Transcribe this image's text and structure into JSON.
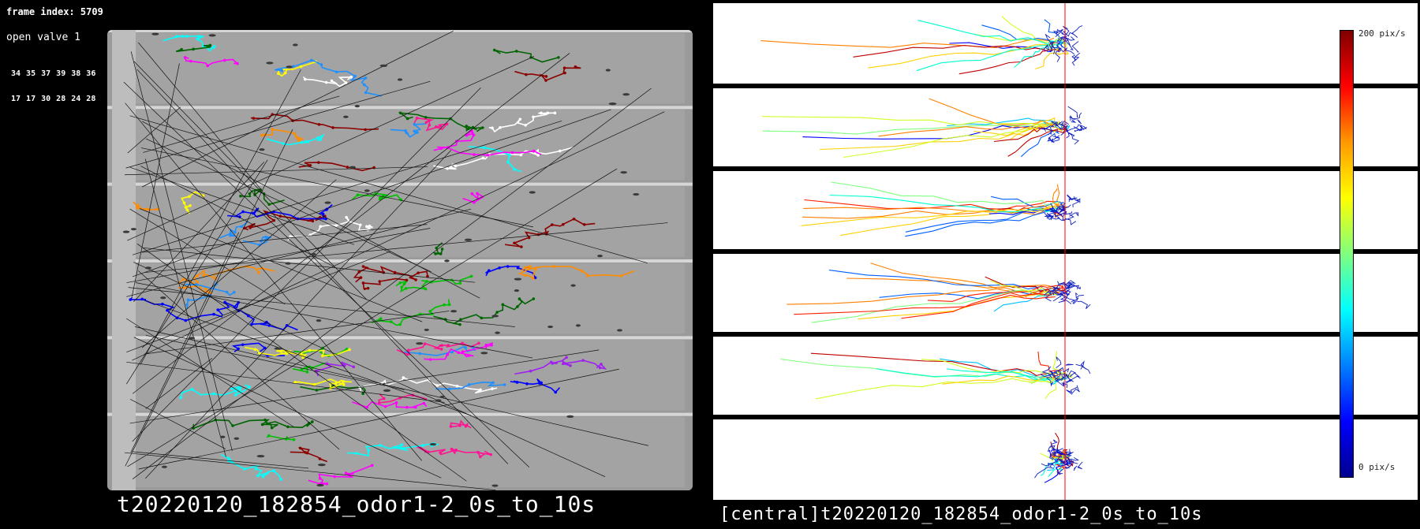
{
  "overlay": {
    "frame_label": "frame index: 5709",
    "valve_label": "open valve 1",
    "counts_row_1": "34 35 37 39 38 36",
    "counts_row_2": "17 17 30 28 24 28"
  },
  "left_view": {
    "caption": "t20220120_182854_odor1-2_0s_to_10s",
    "lanes": 6
  },
  "right_view": {
    "caption": "[central]t20220120_182854_odor1-2_0s_to_10s",
    "lanes": 6,
    "colorbar": {
      "max_label": "200 pix/s",
      "min_label": "0 pix/s",
      "colormap": "jet",
      "marker_color": "#ff0000"
    }
  },
  "colors": {
    "background": "#000000",
    "arena_gray": "#8c8c8c",
    "lane_border": "#d6d6d6"
  }
}
